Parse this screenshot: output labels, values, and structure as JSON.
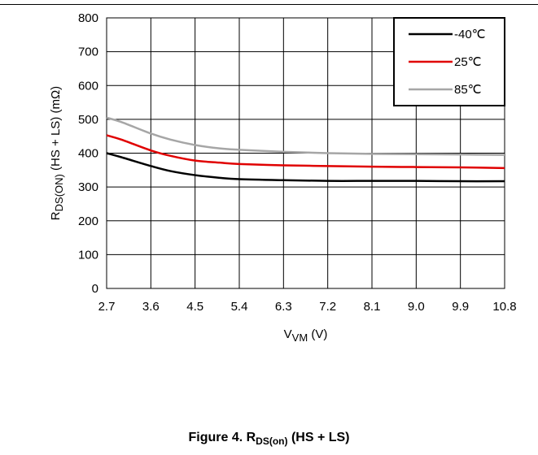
{
  "caption": {
    "prefix": "Figure 4. R",
    "subscript": "DS(on)",
    "suffix": " (HS + LS)"
  },
  "chart_data": {
    "type": "line",
    "xlabel": {
      "main": "V",
      "sub": "VM",
      "tail": " (V)"
    },
    "ylabel": {
      "main": "R",
      "sub": "DS(ON)",
      "tail": " (HS + LS) (mΩ)"
    },
    "xticks": [
      "2.7",
      "3.6",
      "4.5",
      "5.4",
      "6.3",
      "7.2",
      "8.1",
      "9.0",
      "9.9",
      "10.8"
    ],
    "xlim": [
      2.7,
      10.8
    ],
    "ylim": [
      0,
      800
    ],
    "yticks": [
      0,
      100,
      200,
      300,
      400,
      500,
      600,
      700,
      800
    ],
    "grid": true,
    "legend_position": "top-right",
    "series": [
      {
        "name": "-40℃",
        "color": "#000000",
        "x": [
          2.7,
          3.0,
          3.6,
          4.0,
          4.5,
          5.0,
          5.4,
          6.3,
          7.2,
          8.1,
          9.0,
          9.9,
          10.8
        ],
        "y": [
          400,
          388,
          362,
          347,
          335,
          327,
          323,
          320,
          318,
          318,
          318,
          317,
          317
        ]
      },
      {
        "name": "25℃",
        "color": "#e00000",
        "x": [
          2.7,
          3.0,
          3.6,
          4.0,
          4.5,
          5.0,
          5.4,
          6.3,
          7.2,
          8.1,
          9.0,
          9.9,
          10.8
        ],
        "y": [
          453,
          440,
          408,
          392,
          378,
          372,
          368,
          364,
          362,
          360,
          359,
          358,
          356
        ]
      },
      {
        "name": "85℃",
        "color": "#a6a6a6",
        "x": [
          2.7,
          3.0,
          3.6,
          4.0,
          4.5,
          5.0,
          5.4,
          6.3,
          7.2,
          8.1,
          9.0,
          9.9,
          10.8
        ],
        "y": [
          505,
          492,
          458,
          440,
          424,
          414,
          410,
          404,
          400,
          398,
          397,
          396,
          395
        ]
      }
    ]
  }
}
